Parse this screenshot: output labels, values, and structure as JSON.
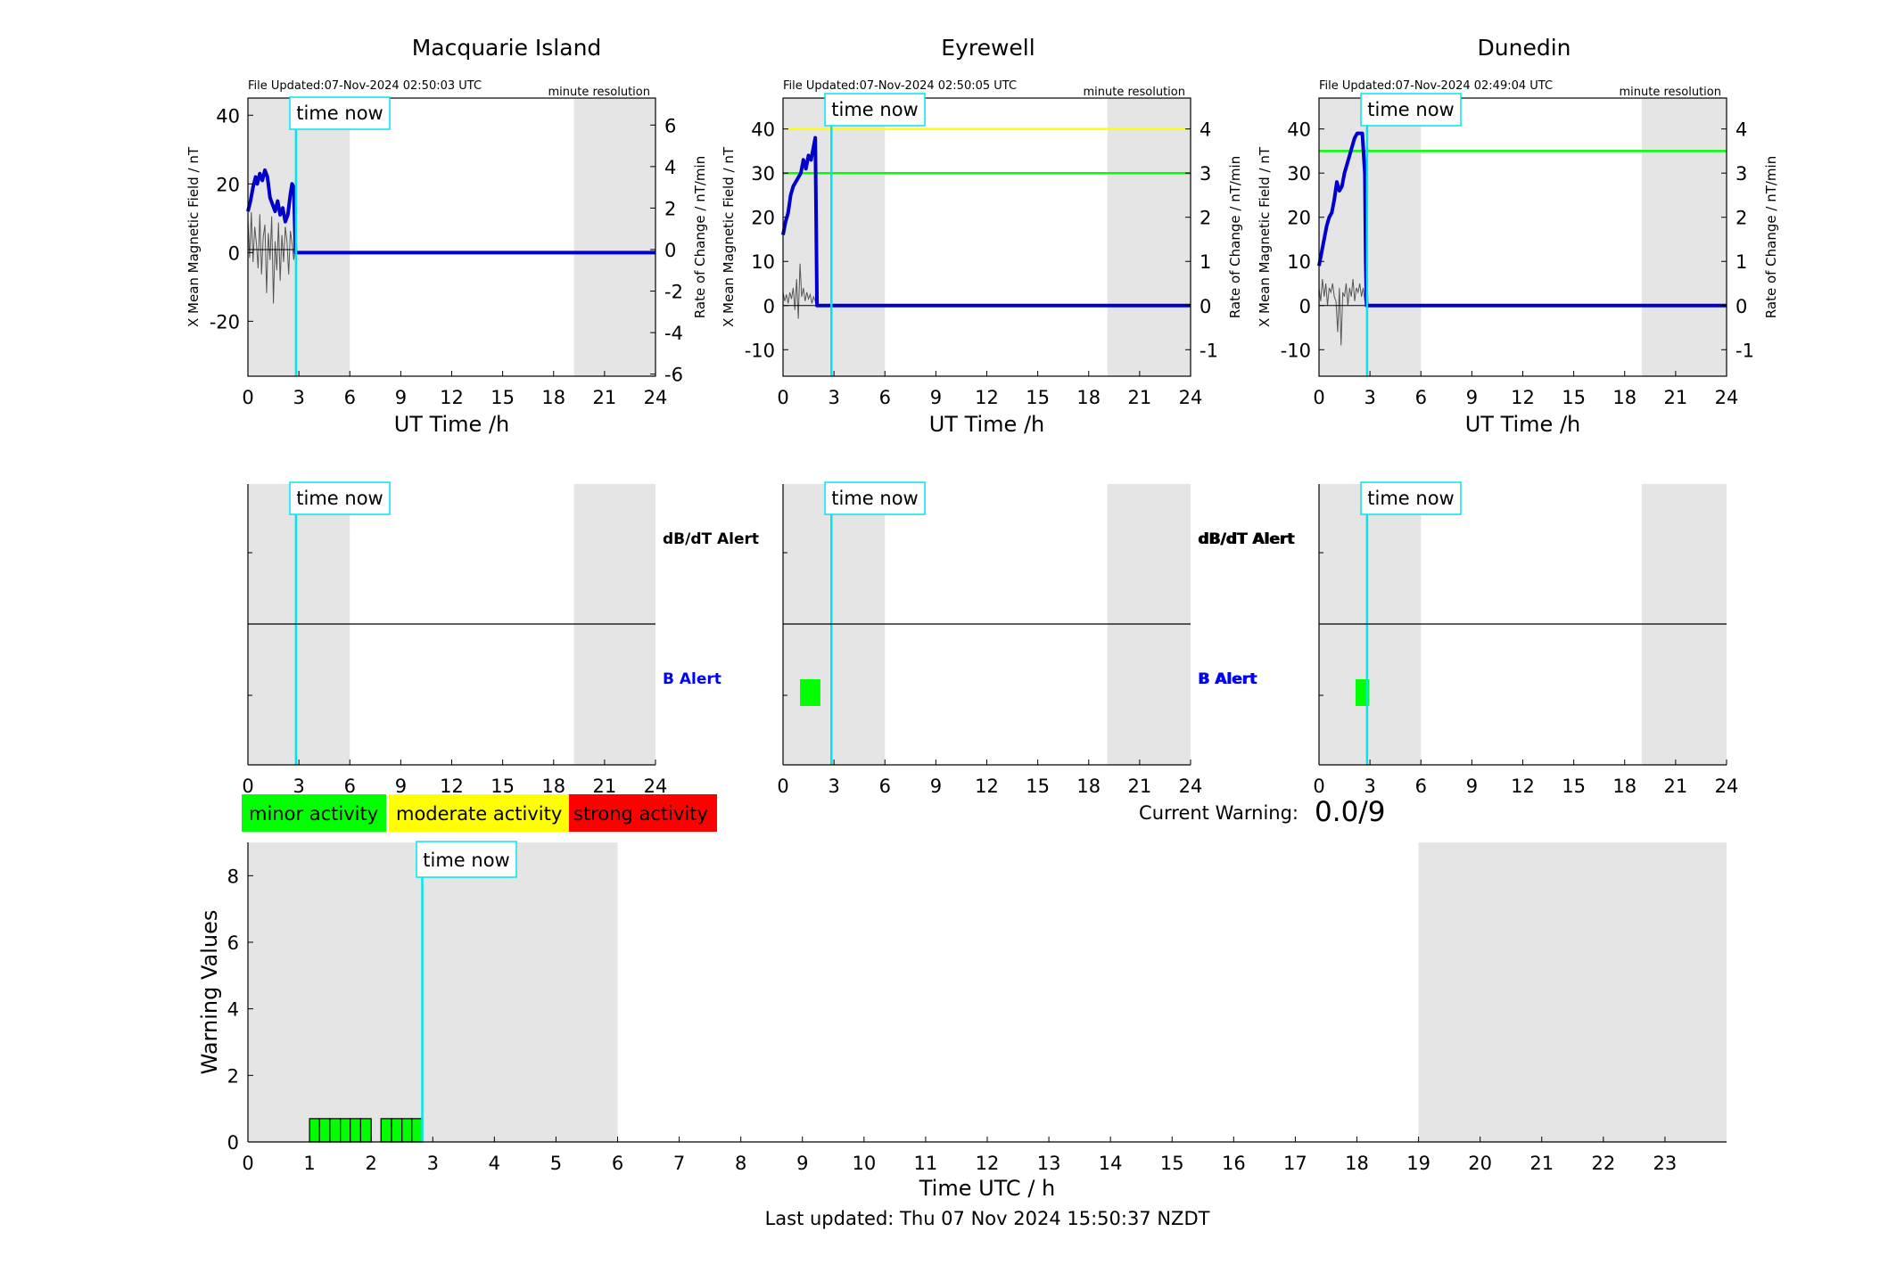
{
  "colors": {
    "x_field": "#0000ff",
    "x_field_dark": "#0000cd",
    "rate": "#555555",
    "night_shade": "#e5e5e5",
    "time_now": "#00e5ee",
    "minor": "#00ff00",
    "moderate": "#ffff00",
    "strong": "#ff0000"
  },
  "common": {
    "time_now_label": "time now",
    "resolution_label": "minute resolution",
    "xlabel": "UT Time /h",
    "left_ylabel": "X Mean Magnetic Field / nT",
    "right_ylabel": "Rate of Change / nT/min",
    "x_ticks": [
      "0",
      "3",
      "6",
      "9",
      "12",
      "15",
      "18",
      "21",
      "24"
    ],
    "dbdt_alert_label": "dB/dT Alert",
    "b_alert_label": "B Alert"
  },
  "legend": {
    "minor": "minor activity",
    "moderate": "moderate activity",
    "strong": "strong activity"
  },
  "warning": {
    "label": "Current Warning:",
    "value": "0.0/9"
  },
  "footer": {
    "last_updated": "Last updated: Thu 07 Nov 2024 15:50:37 NZDT"
  },
  "chart_data": [
    {
      "type": "line",
      "station": "Macquarie Island",
      "file_updated": "File Updated:07-Nov-2024 02:50:03 UTC",
      "xlim": [
        0,
        24
      ],
      "ylim": [
        -36,
        45
      ],
      "ylim_right": [
        -6.1,
        7.3
      ],
      "left_ticks": [
        "-20",
        "0",
        "20",
        "40"
      ],
      "right_ticks": [
        "-6",
        "-4",
        "-2",
        "0",
        "2",
        "4",
        "6"
      ],
      "time_now": 2.83,
      "night_bands": [
        [
          0,
          6
        ],
        [
          19.2,
          24
        ]
      ],
      "thresholds": [],
      "x_mean_field": {
        "x": [
          0,
          0.15,
          0.3,
          0.45,
          0.55,
          0.7,
          0.85,
          1.0,
          1.15,
          1.3,
          1.45,
          1.6,
          1.75,
          1.9,
          2.05,
          2.2,
          2.35,
          2.5,
          2.6,
          2.7,
          2.8,
          2.83,
          24
        ],
        "y": [
          12,
          15,
          19,
          22,
          20,
          23,
          21,
          24,
          22,
          16,
          14,
          12,
          15,
          11,
          13,
          9,
          11,
          17,
          20,
          19,
          0,
          0,
          0
        ]
      },
      "rate_of_change": {
        "x": [
          0,
          0.1,
          0.2,
          0.3,
          0.4,
          0.5,
          0.6,
          0.7,
          0.8,
          0.9,
          1.0,
          1.1,
          1.2,
          1.3,
          1.4,
          1.5,
          1.6,
          1.7,
          1.8,
          1.9,
          2.0,
          2.1,
          2.2,
          2.3,
          2.4,
          2.5,
          2.6,
          2.7,
          2.8
        ],
        "y": [
          1.5,
          -0.4,
          1.8,
          -0.6,
          1.1,
          0.3,
          -0.9,
          1.7,
          -1.2,
          0.6,
          1.2,
          -2.1,
          0.8,
          -0.5,
          1.6,
          -2.6,
          0.4,
          -1.0,
          1.3,
          -1.5,
          0.7,
          -0.6,
          1.1,
          0.4,
          -1.2,
          0.9,
          0.3,
          -0.5,
          0.2
        ]
      },
      "alerts": {
        "dbdt": [],
        "b": []
      }
    },
    {
      "type": "line",
      "station": "Eyrewell",
      "file_updated": "File Updated:07-Nov-2024 02:50:05 UTC",
      "xlim": [
        0,
        24
      ],
      "ylim": [
        -16,
        47
      ],
      "ylim_right": [
        -1.6,
        4.7
      ],
      "left_ticks": [
        "-10",
        "0",
        "10",
        "20",
        "30",
        "40"
      ],
      "right_ticks": [
        "-1",
        "0",
        "1",
        "2",
        "3",
        "4"
      ],
      "time_now": 2.85,
      "night_bands": [
        [
          0,
          6
        ],
        [
          19.1,
          24
        ]
      ],
      "thresholds": [
        {
          "value": 40,
          "color": "#ffff00"
        },
        {
          "value": 30,
          "color": "#00ff00"
        }
      ],
      "x_mean_field": {
        "x": [
          0,
          0.15,
          0.3,
          0.45,
          0.6,
          0.75,
          0.9,
          1.05,
          1.2,
          1.35,
          1.5,
          1.65,
          1.8,
          1.9,
          1.95,
          2.0,
          24
        ],
        "y": [
          16,
          19,
          21,
          25,
          27,
          28,
          29,
          30,
          33,
          31,
          34,
          33,
          36,
          38,
          20,
          0,
          0
        ]
      },
      "rate_of_change": {
        "x": [
          0,
          0.1,
          0.2,
          0.3,
          0.4,
          0.5,
          0.6,
          0.7,
          0.8,
          0.9,
          1.0,
          1.1,
          1.2,
          1.3,
          1.4,
          1.5,
          1.6,
          1.7,
          1.8,
          1.9,
          2.0
        ],
        "y": [
          0.3,
          0.1,
          0.25,
          0.05,
          0.3,
          0.15,
          0.4,
          -0.1,
          0.6,
          -0.3,
          0.95,
          0.2,
          0.4,
          0.1,
          0.3,
          0.15,
          0.25,
          0.05,
          0.2,
          0.1,
          0.0
        ]
      },
      "alerts": {
        "dbdt": [],
        "b": [
          {
            "start": 1.0,
            "end": 2.2
          }
        ]
      }
    },
    {
      "type": "line",
      "station": "Dunedin",
      "file_updated": "File Updated:07-Nov-2024 02:49:04 UTC",
      "xlim": [
        0,
        24
      ],
      "ylim": [
        -16,
        47
      ],
      "ylim_right": [
        -1.6,
        4.7
      ],
      "left_ticks": [
        "-10",
        "0",
        "10",
        "20",
        "30",
        "40"
      ],
      "right_ticks": [
        "-1",
        "0",
        "1",
        "2",
        "3",
        "4"
      ],
      "time_now": 2.83,
      "night_bands": [
        [
          0,
          6
        ],
        [
          19.0,
          24
        ]
      ],
      "thresholds": [
        {
          "value": 35,
          "color": "#00ff00"
        }
      ],
      "x_mean_field": {
        "x": [
          0,
          0.15,
          0.3,
          0.45,
          0.6,
          0.75,
          0.9,
          1.05,
          1.2,
          1.35,
          1.5,
          1.65,
          1.8,
          1.95,
          2.1,
          2.25,
          2.4,
          2.55,
          2.7,
          2.75,
          2.8,
          24
        ],
        "y": [
          9,
          12,
          15,
          18,
          20,
          21,
          24,
          28,
          26,
          27,
          30,
          32,
          34,
          36,
          38,
          39,
          39,
          39,
          30,
          10,
          0,
          0
        ]
      },
      "rate_of_change": {
        "x": [
          0,
          0.1,
          0.2,
          0.3,
          0.4,
          0.5,
          0.6,
          0.7,
          0.8,
          0.9,
          1.0,
          1.1,
          1.2,
          1.3,
          1.4,
          1.5,
          1.6,
          1.7,
          1.8,
          1.9,
          2.0,
          2.1,
          2.2,
          2.3,
          2.4,
          2.5,
          2.6,
          2.7,
          2.8
        ],
        "y": [
          0.4,
          0.1,
          0.6,
          0.2,
          0.5,
          0.0,
          0.4,
          0.3,
          0.5,
          0.2,
          0.1,
          -0.6,
          0.4,
          -0.9,
          0.3,
          0.2,
          0.5,
          0.0,
          0.4,
          0.2,
          0.6,
          0.1,
          0.4,
          0.3,
          0.5,
          0.2,
          0.4,
          0.1,
          0.3
        ]
      },
      "alerts": {
        "dbdt": [],
        "b": [
          {
            "start": 2.15,
            "end": 2.95
          }
        ]
      }
    },
    {
      "type": "bar",
      "xlabel": "Time UTC / h",
      "ylabel": "Warning Values",
      "xlim": [
        0,
        24
      ],
      "ylim": [
        0,
        9
      ],
      "x_ticks": [
        "0",
        "1",
        "2",
        "3",
        "4",
        "5",
        "6",
        "7",
        "8",
        "9",
        "10",
        "11",
        "12",
        "13",
        "14",
        "15",
        "16",
        "17",
        "18",
        "19",
        "20",
        "21",
        "22",
        "23"
      ],
      "y_ticks": [
        "0",
        "2",
        "4",
        "6",
        "8"
      ],
      "time_now": 2.83,
      "night_bands": [
        [
          0,
          6
        ],
        [
          19,
          24
        ]
      ],
      "bars": [
        {
          "start": 1.0,
          "end": 1.16,
          "value": 0.7
        },
        {
          "start": 1.16,
          "end": 1.33,
          "value": 0.7
        },
        {
          "start": 1.33,
          "end": 1.5,
          "value": 0.7
        },
        {
          "start": 1.5,
          "end": 1.66,
          "value": 0.7
        },
        {
          "start": 1.66,
          "end": 1.83,
          "value": 0.7
        },
        {
          "start": 1.83,
          "end": 2.0,
          "value": 0.7
        },
        {
          "start": 2.16,
          "end": 2.33,
          "value": 0.7
        },
        {
          "start": 2.33,
          "end": 2.5,
          "value": 0.7
        },
        {
          "start": 2.5,
          "end": 2.66,
          "value": 0.7
        },
        {
          "start": 2.66,
          "end": 2.83,
          "value": 0.7
        }
      ]
    }
  ]
}
